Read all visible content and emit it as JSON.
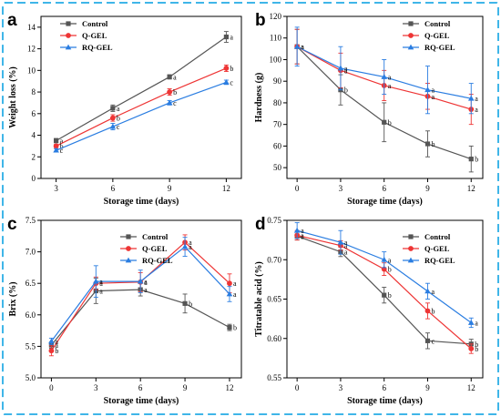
{
  "chart_data": [
    {
      "panel": "a",
      "type": "line",
      "xlabel": "Storage time (days)",
      "ylabel": "Weight loss (%)",
      "xlim": [
        2.2,
        12.8
      ],
      "ylim": [
        0,
        15
      ],
      "x_ticks": [
        3,
        6,
        9,
        12
      ],
      "y_ticks": [
        0,
        2,
        4,
        6,
        8,
        10,
        12,
        14
      ],
      "legend_position": "top-left",
      "x": [
        3,
        6,
        9,
        12
      ],
      "series": [
        {
          "name": "Control",
          "color": "#555555",
          "marker": "square",
          "values": [
            3.5,
            6.5,
            9.4,
            13.1
          ],
          "errors": [
            0.2,
            0.3,
            0.2,
            0.5
          ],
          "labels": [
            "a",
            "a",
            "a",
            "a"
          ]
        },
        {
          "name": "Q-GEL",
          "color": "#ee3535",
          "marker": "circle",
          "values": [
            3.0,
            5.6,
            8.0,
            10.2
          ],
          "errors": [
            0.15,
            0.3,
            0.3,
            0.3
          ],
          "labels": [
            "b",
            "b",
            "b",
            "b"
          ]
        },
        {
          "name": "RQ-GEL",
          "color": "#2a7de1",
          "marker": "triangle",
          "values": [
            2.6,
            4.8,
            7.0,
            8.9
          ],
          "errors": [
            0.15,
            0.3,
            0.2,
            0.2
          ],
          "labels": [
            "c",
            "c",
            "c",
            "c"
          ]
        }
      ]
    },
    {
      "panel": "b",
      "type": "line",
      "xlabel": "Storage time (days)",
      "ylabel": "Hardness (g)",
      "xlim": [
        -0.7,
        12.8
      ],
      "ylim": [
        45,
        120
      ],
      "x_ticks": [
        0,
        3,
        6,
        9,
        12
      ],
      "y_ticks": [
        50,
        60,
        70,
        80,
        90,
        100,
        110,
        120
      ],
      "legend_position": "top-right",
      "x": [
        0,
        3,
        6,
        9,
        12
      ],
      "series": [
        {
          "name": "Control",
          "color": "#555555",
          "marker": "square",
          "values": [
            106,
            86,
            71,
            61,
            54
          ],
          "errors": [
            8,
            7,
            9,
            6,
            6
          ],
          "labels": [
            "a",
            "b",
            "b",
            "b",
            "b"
          ]
        },
        {
          "name": "Q-GEL",
          "color": "#ee3535",
          "marker": "circle",
          "values": [
            106,
            95,
            88,
            83,
            77
          ],
          "errors": [
            8,
            8,
            7,
            6,
            7
          ],
          "labels": [
            "a",
            "a",
            "a",
            "a",
            "a"
          ]
        },
        {
          "name": "RQ-GEL",
          "color": "#2a7de1",
          "marker": "triangle",
          "values": [
            106,
            96,
            92,
            86,
            82
          ],
          "errors": [
            9,
            10,
            8,
            11,
            7
          ],
          "labels": [
            "a",
            "a",
            "a",
            "a",
            "a"
          ]
        }
      ]
    },
    {
      "panel": "c",
      "type": "line",
      "xlabel": "Storage time (days)",
      "ylabel": "Brix (%)",
      "xlim": [
        -0.7,
        12.8
      ],
      "ylim": [
        5.0,
        7.5
      ],
      "x_ticks": [
        0,
        3,
        6,
        9,
        12
      ],
      "y_ticks": [
        5.0,
        5.5,
        6.0,
        6.5,
        7.0,
        7.5
      ],
      "y_tick_labels": [
        "5.0",
        "5.5",
        "6.0",
        "6.5",
        "7.0",
        "7.5"
      ],
      "legend_position": "top-center",
      "x": [
        0,
        3,
        6,
        9,
        12
      ],
      "series": [
        {
          "name": "Control",
          "color": "#555555",
          "marker": "square",
          "values": [
            5.52,
            6.38,
            6.4,
            6.18,
            5.8
          ],
          "errors": [
            0.05,
            0.2,
            0.1,
            0.15,
            0.05
          ],
          "labels": [
            "a",
            "a",
            "a",
            "b",
            "b"
          ]
        },
        {
          "name": "Q-GEL",
          "color": "#ee3535",
          "marker": "circle",
          "values": [
            5.43,
            6.5,
            6.52,
            7.15,
            6.5
          ],
          "errors": [
            0.08,
            0.1,
            0.15,
            0.12,
            0.15
          ],
          "labels": [
            "b",
            "a",
            "a",
            "a",
            "a"
          ]
        },
        {
          "name": "RQ-GEL",
          "color": "#2a7de1",
          "marker": "triangle",
          "values": [
            5.58,
            6.53,
            6.53,
            7.08,
            6.33
          ],
          "errors": [
            0.05,
            0.25,
            0.18,
            0.15,
            0.12
          ],
          "labels": [
            "a",
            "a",
            "a",
            "a",
            "a"
          ]
        }
      ]
    },
    {
      "panel": "d",
      "type": "line",
      "xlabel": "Storage time (days)",
      "ylabel": "Titratable acid (%)",
      "xlim": [
        -0.7,
        12.8
      ],
      "ylim": [
        0.55,
        0.75
      ],
      "x_ticks": [
        0,
        3,
        6,
        9,
        12
      ],
      "y_ticks": [
        0.55,
        0.6,
        0.65,
        0.7,
        0.75
      ],
      "y_tick_labels": [
        "0.55",
        "0.60",
        "0.65",
        "0.70",
        "0.75"
      ],
      "legend_position": "top-right",
      "x": [
        0,
        3,
        6,
        9,
        12
      ],
      "series": [
        {
          "name": "Control",
          "color": "#555555",
          "marker": "square",
          "values": [
            0.73,
            0.71,
            0.655,
            0.597,
            0.593
          ],
          "errors": [
            0.005,
            0.006,
            0.01,
            0.01,
            0.006
          ],
          "labels": [
            "a",
            "a",
            "b",
            "c",
            "b"
          ]
        },
        {
          "name": "Q-GEL",
          "color": "#ee3535",
          "marker": "circle",
          "values": [
            0.731,
            0.718,
            0.688,
            0.635,
            0.587
          ],
          "errors": [
            0.006,
            0.006,
            0.008,
            0.01,
            0.006
          ],
          "labels": [
            "a",
            "a",
            "b",
            "b",
            "b"
          ]
        },
        {
          "name": "RQ-GEL",
          "color": "#2a7de1",
          "marker": "triangle",
          "values": [
            0.737,
            0.722,
            0.7,
            0.66,
            0.62
          ],
          "errors": [
            0.01,
            0.015,
            0.01,
            0.01,
            0.006
          ],
          "labels": [
            "a",
            "a",
            "a",
            "a",
            "a"
          ]
        }
      ]
    }
  ]
}
